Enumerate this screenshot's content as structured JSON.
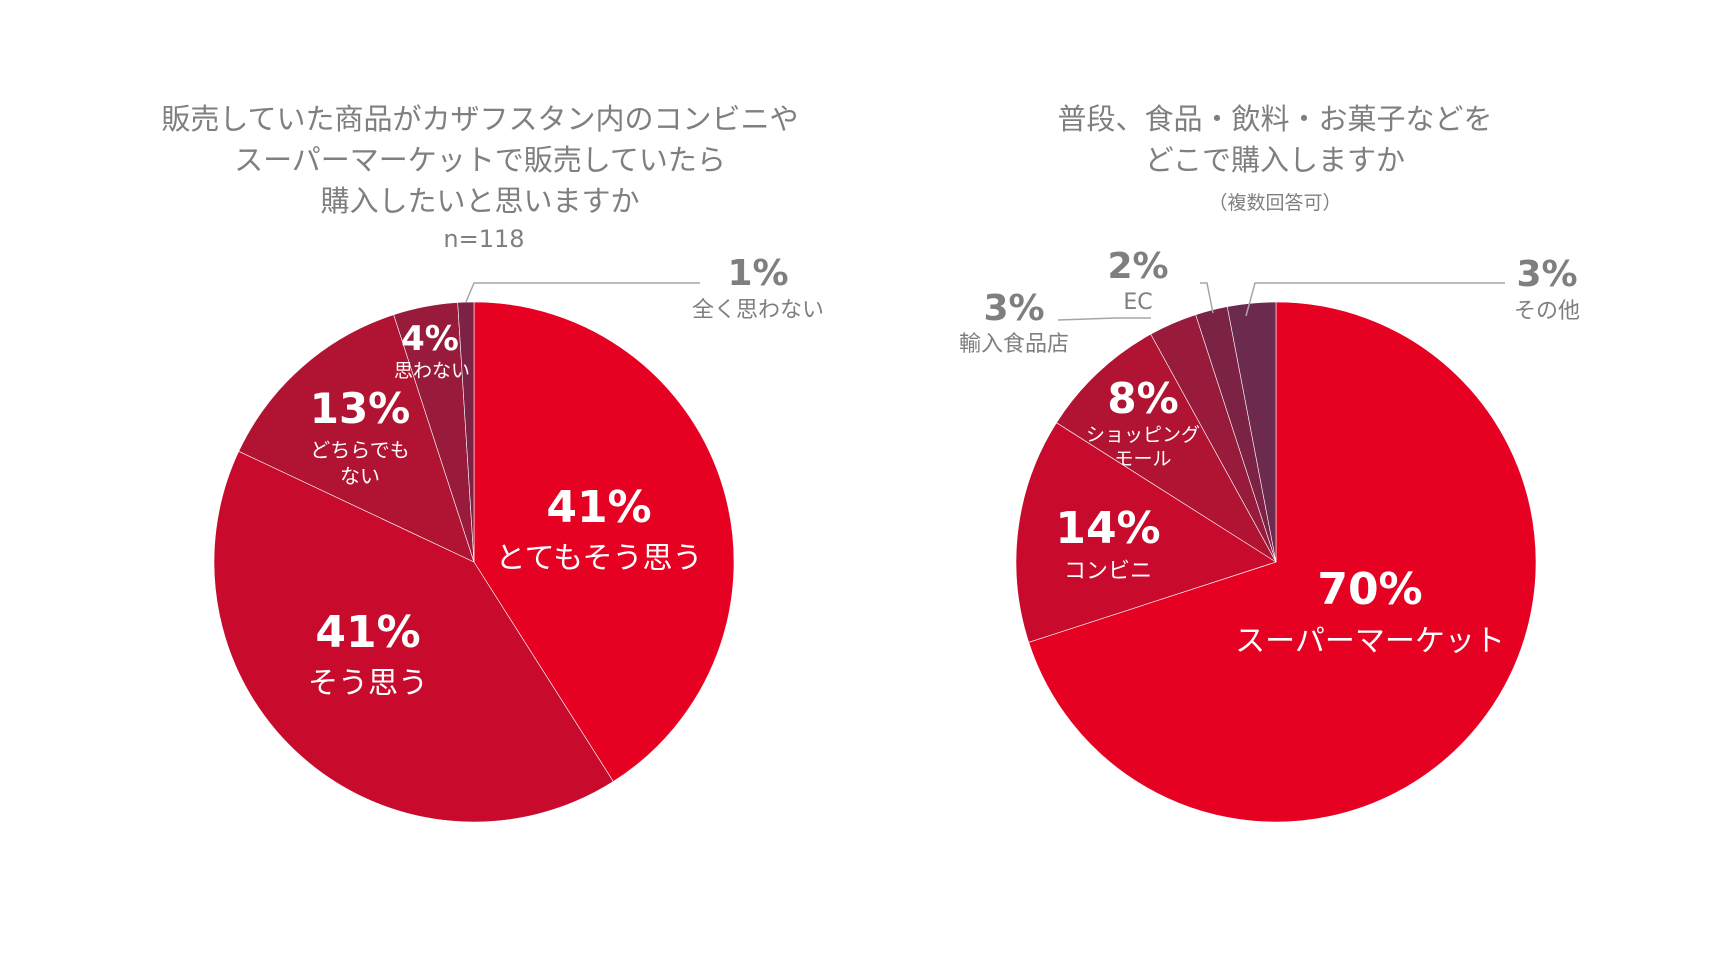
{
  "chart_data": [
    {
      "type": "pie",
      "title_lines": [
        "販売していた商品がカザフスタン内のコンビニや",
        "スーパーマーケットで販売していたら",
        "購入したいと思いますか"
      ],
      "note": "n=118",
      "slices": [
        {
          "label_lines": [
            "とてもそう思う"
          ],
          "value": 41,
          "pct_label": "41%",
          "color": "#e60022"
        },
        {
          "label_lines": [
            "そう思う"
          ],
          "value": 41,
          "pct_label": "41%",
          "color": "#c80b2c"
        },
        {
          "label_lines": [
            "どちらでも",
            "ない"
          ],
          "value": 13,
          "pct_label": "13%",
          "color": "#b01432"
        },
        {
          "label_lines": [
            "思わない"
          ],
          "value": 4,
          "pct_label": "4%",
          "color": "#981b3c"
        },
        {
          "label_lines": [
            "全く思わない"
          ],
          "value": 1,
          "pct_label": "1%",
          "color": "#7c2245"
        }
      ]
    },
    {
      "type": "pie",
      "title_lines": [
        "普段、食品・飲料・お菓子などを",
        "どこで購入しますか"
      ],
      "note": "（複数回答可）",
      "slices": [
        {
          "label_lines": [
            "スーパーマーケット"
          ],
          "value": 70,
          "pct_label": "70%",
          "color": "#e60022"
        },
        {
          "label_lines": [
            "コンビニ"
          ],
          "value": 14,
          "pct_label": "14%",
          "color": "#c80b2c"
        },
        {
          "label_lines": [
            "ショッピング",
            "モール"
          ],
          "value": 8,
          "pct_label": "8%",
          "color": "#b01432"
        },
        {
          "label_lines": [
            "輸入食品店"
          ],
          "value": 3,
          "pct_label": "3%",
          "color": "#981b3c"
        },
        {
          "label_lines": [
            "EC"
          ],
          "value": 2,
          "pct_label": "2%",
          "color": "#7c2245"
        },
        {
          "label_lines": [
            "その他"
          ],
          "value": 3,
          "pct_label": "3%",
          "color": "#6b2a4e"
        }
      ]
    }
  ]
}
